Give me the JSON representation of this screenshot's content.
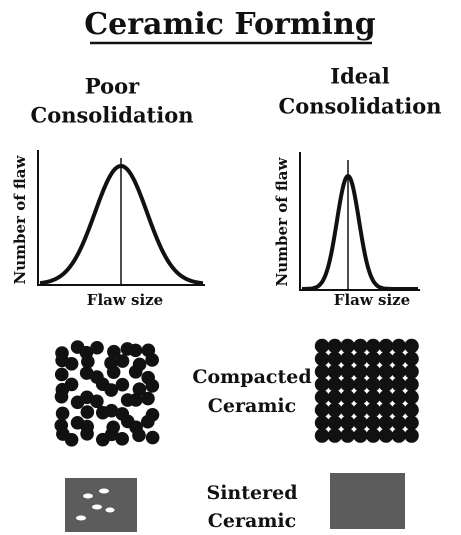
{
  "title": "Ceramic Forming",
  "panels": [
    {
      "heading": [
        "Poor",
        "Consolidation"
      ],
      "y_label": "Number of flaw",
      "x_label": "Flaw size"
    },
    {
      "heading": [
        "Ideal",
        "Consolidation"
      ],
      "y_label": "Number of flaw",
      "x_label": "Flaw size"
    }
  ],
  "rows": [
    {
      "label": [
        "Compacted",
        "Ceramic"
      ]
    },
    {
      "label": [
        "Sintered",
        "Ceramic"
      ]
    }
  ]
}
